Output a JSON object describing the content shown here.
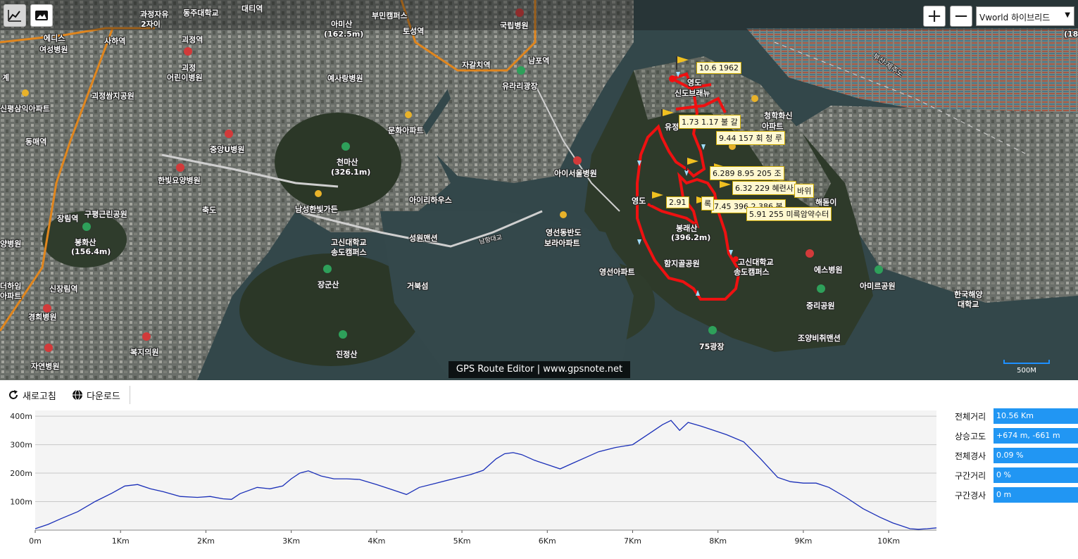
{
  "map": {
    "zoom_in": "+",
    "zoom_out": "−",
    "layer": "Vworld 하이브리드",
    "watermark": "GPS Route Editor | www.gpsnote.net",
    "scale": "500M",
    "labels": {
      "l1": "과정자유",
      "l2": "동주대학교",
      "l3": "대티역",
      "l4": "아미산",
      "l5": "(162.5m)",
      "l6": "부민캠퍼스",
      "l7": "토성역",
      "l8": "국립병원",
      "l9": "에디스",
      "l10": "여성병원",
      "l11": "사하역",
      "l12": "괴정역",
      "l13": "2자이",
      "l14": "자갈치역",
      "l15": "남포역",
      "l16": "유라리광장",
      "l17": "예사랑병원",
      "l18": "괴정",
      "l19": "어린이병원",
      "l20": "괴정쌈지공원",
      "l21": "신평삼익아파트",
      "l22": "동매역",
      "l23": "중앙U병원",
      "l24": "문화아파트",
      "l25": "천마산",
      "l26": "(326.1m)",
      "l27": "아이서울병원",
      "l28": "한빛요양병원",
      "l29": "남성한빛가든",
      "l30": "아이리하우스",
      "l31": "장림역",
      "l32": "구평근린공원",
      "l33": "봉화산",
      "l34": "(156.4m)",
      "l35": "고신대학교",
      "l36": "송도캠퍼스",
      "l37": "성원맨션",
      "l38": "영선동반도",
      "l39": "보라아파트",
      "l40": "영선아파트",
      "l41": "봉래산",
      "l42": "(396.2m)",
      "l43": "함지골공원",
      "l44": "고신대학교",
      "l45": "송도캠퍼스",
      "l46": "에스병원",
      "l47": "아미르공원",
      "l48": "한국해양",
      "l49": "대학교",
      "l50": "장군산",
      "l51": "거북섬",
      "l52": "신장림역",
      "l53": "경희병원",
      "l54": "복지의원",
      "l55": "진정산",
      "l56": "자연병원",
      "l57": "75광장",
      "l58": "중리공원",
      "l59": "조양비취맨션",
      "l60": "청학화신",
      "l61": "아파트",
      "l62": "부산-제주도",
      "l63": "영도",
      "l64": "신도브래뉴",
      "l65": "유정",
      "l66": "해돋이",
      "l67": "양병원",
      "l68": "(180",
      "l69": "남항대교",
      "l70": "더하임",
      "l71": "아파트",
      "l72": "축도",
      "l73": "계",
      "l74": "영도"
    },
    "waypoints": {
      "w1": "10.6 1962",
      "w2": "1.73 1.17 불 갈",
      "w3": "9.44 157 회 청 루",
      "w4": "6.289 8.95 205 조",
      "w5": "6.32 229 혜련사",
      "w6": "바위",
      "w7": "2.91",
      "w8": "7.45 396.2 386 봉",
      "w9": "5.91 255 미륵암약수터",
      "w10": "록"
    }
  },
  "panel": {
    "refresh_label": "새로고침",
    "download_label": "다운로드",
    "stats": [
      {
        "label": "전체거리",
        "value": "10.56 Km"
      },
      {
        "label": "상승고도",
        "value": "+674 m, -661 m"
      },
      {
        "label": "전체경사",
        "value": "0.09 %"
      },
      {
        "label": "구간거리",
        "value": "0 %"
      },
      {
        "label": "구간경사",
        "value": "0 m"
      }
    ]
  },
  "chart_data": {
    "type": "area",
    "x_ticks": [
      "0m",
      "1Km",
      "2Km",
      "3Km",
      "4Km",
      "5Km",
      "6Km",
      "7Km",
      "8Km",
      "9Km",
      "10Km"
    ],
    "y_ticks": [
      "100m",
      "200m",
      "300m",
      "400m"
    ],
    "xlim": [
      0,
      10.56
    ],
    "ylim": [
      0,
      420
    ],
    "x": [
      0,
      0.15,
      0.3,
      0.5,
      0.7,
      0.9,
      1.05,
      1.2,
      1.35,
      1.5,
      1.7,
      1.9,
      2.05,
      2.2,
      2.3,
      2.4,
      2.6,
      2.75,
      2.9,
      3.0,
      3.1,
      3.2,
      3.35,
      3.5,
      3.65,
      3.8,
      4.0,
      4.2,
      4.35,
      4.5,
      4.7,
      4.9,
      5.1,
      5.25,
      5.4,
      5.5,
      5.6,
      5.7,
      5.85,
      6.0,
      6.15,
      6.3,
      6.45,
      6.6,
      6.8,
      7.0,
      7.2,
      7.35,
      7.45,
      7.55,
      7.65,
      7.8,
      7.95,
      8.1,
      8.3,
      8.5,
      8.7,
      8.85,
      9.0,
      9.15,
      9.3,
      9.5,
      9.7,
      9.9,
      10.05,
      10.15,
      10.25,
      10.35,
      10.45,
      10.56
    ],
    "y": [
      5,
      20,
      40,
      65,
      100,
      130,
      155,
      160,
      145,
      135,
      118,
      115,
      118,
      110,
      108,
      128,
      150,
      145,
      155,
      180,
      200,
      208,
      190,
      180,
      180,
      178,
      160,
      140,
      125,
      150,
      165,
      180,
      195,
      210,
      250,
      268,
      272,
      265,
      245,
      230,
      215,
      235,
      255,
      275,
      290,
      300,
      340,
      370,
      385,
      350,
      378,
      365,
      350,
      335,
      310,
      250,
      185,
      170,
      165,
      165,
      150,
      115,
      75,
      45,
      25,
      15,
      5,
      3,
      5,
      8
    ]
  }
}
